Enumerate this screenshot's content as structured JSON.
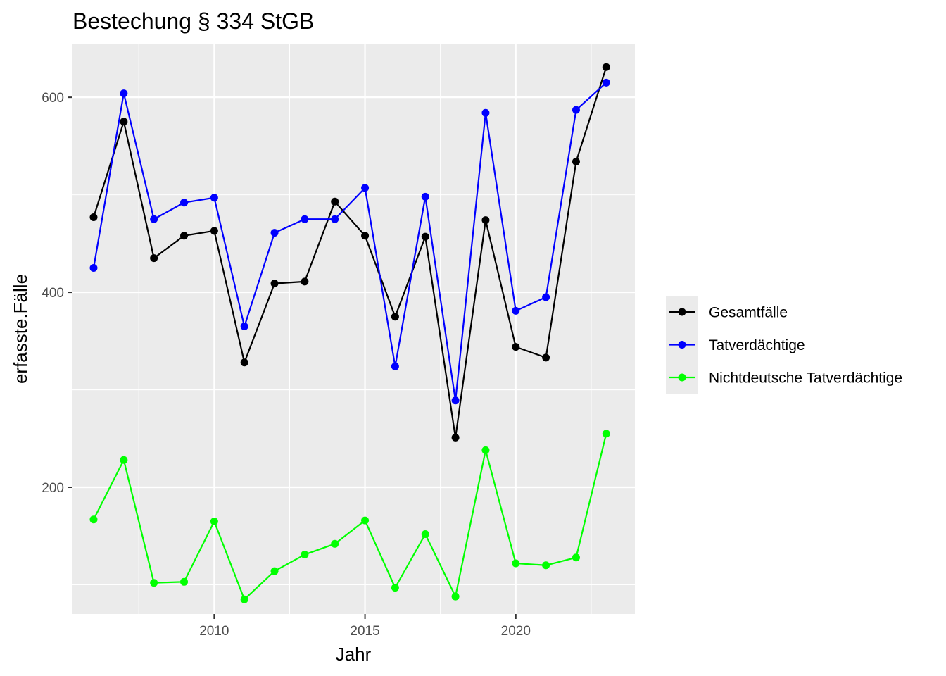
{
  "chart_data": {
    "type": "line",
    "title": "Bestechung § 334 StGB",
    "xlabel": "Jahr",
    "ylabel": "erfasste.Fälle",
    "x": [
      2006,
      2007,
      2008,
      2009,
      2010,
      2011,
      2012,
      2013,
      2014,
      2015,
      2016,
      2017,
      2018,
      2019,
      2020,
      2021,
      2022,
      2023
    ],
    "xlim": [
      2005.3,
      2023.95
    ],
    "ylim": [
      70,
      655
    ],
    "xticks": [
      2010,
      2015,
      2020
    ],
    "xtick_labels": [
      "2010",
      "2015",
      "2020"
    ],
    "yticks": [
      200,
      400,
      600
    ],
    "ytick_labels": [
      "200",
      "400",
      "600"
    ],
    "grid": true,
    "legend_position": "right",
    "series": [
      {
        "name": "Gesamtfälle",
        "color": "#000000",
        "values": [
          477,
          575,
          435,
          458,
          463,
          328,
          409,
          411,
          493,
          458,
          375,
          457,
          251,
          474,
          344,
          333,
          534,
          631
        ]
      },
      {
        "name": "Tatverdächtige",
        "color": "#0000ff",
        "values": [
          425,
          604,
          475,
          492,
          497,
          365,
          461,
          475,
          475,
          507,
          324,
          498,
          289,
          584,
          381,
          395,
          587,
          615
        ]
      },
      {
        "name": "Nichtdeutsche Tatverdächtige",
        "color": "#00ff00",
        "values": [
          167,
          228,
          102,
          103,
          165,
          85,
          114,
          131,
          142,
          166,
          97,
          152,
          88,
          238,
          122,
          120,
          128,
          255
        ]
      }
    ]
  }
}
